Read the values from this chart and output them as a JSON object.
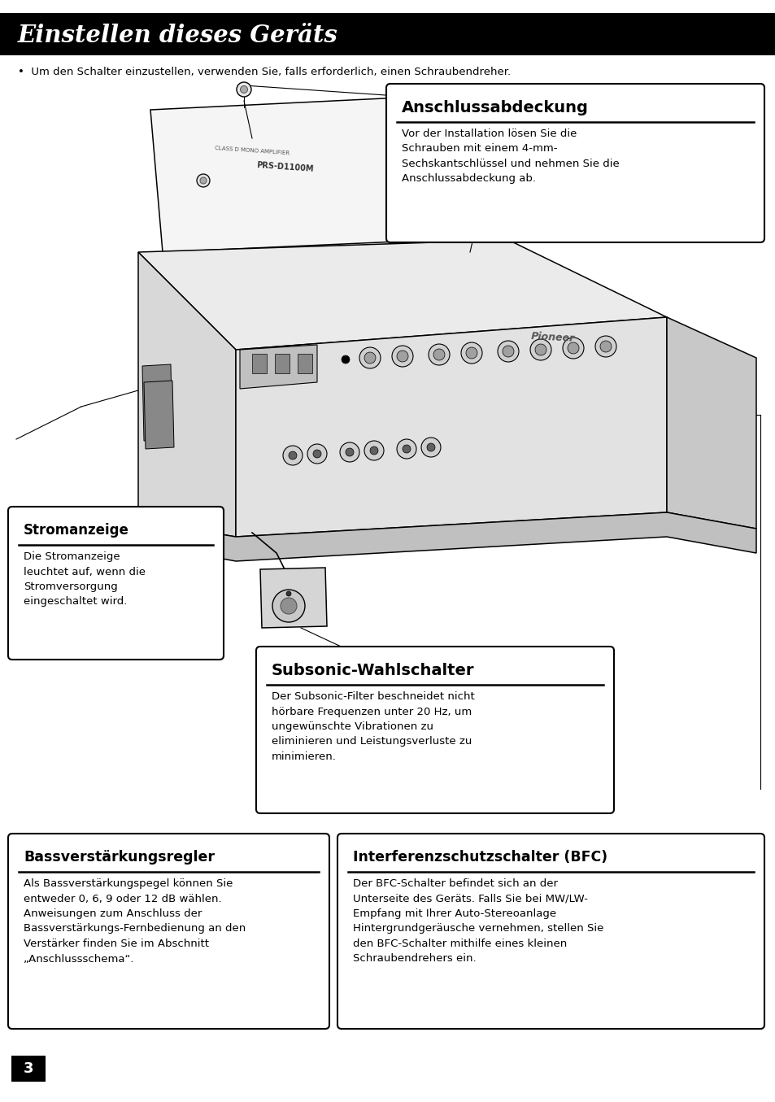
{
  "page_bg": "#ffffff",
  "title_bg": "#000000",
  "title_text": "Einstellen dieses Geräts",
  "title_color": "#ffffff",
  "bullet_text": "Um den Schalter einzustellen, verwenden Sie, falls erforderlich, einen Schraubendreher.",
  "box_anschluss_title": "Anschlussabdeckung",
  "box_anschluss_body": "Vor der Installation lösen Sie die\nSchrauben mit einem 4-mm-\nSechskantschlüssel und nehmen Sie die\nAnschlussabdeckung ab.",
  "box_strom_title": "Stromanzeige",
  "box_strom_body": "Die Stromanzeige\nleuchtet auf, wenn die\nStromversorgung\neingeschaltet wird.",
  "box_subsonic_title": "Subsonic-Wahlschalter",
  "box_subsonic_body": "Der Subsonic-Filter beschneidet nicht\nhörbare Frequenzen unter 20 Hz, um\nungewünschte Vibrationen zu\neliminieren und Leistungsverluste zu\nminimieren.",
  "box_bass_title": "Bassverstärkungsregler",
  "box_bass_body": "Als Bassverstärkungspegel können Sie\nentweder 0, 6, 9 oder 12 dB wählen.\nAnweisungen zum Anschluss der\nBassverstärkungs-Fernbedienung an den\nVerstärker finden Sie im Abschnitt\n„Anschlussschema“.",
  "box_bfc_title": "Interferenzschutzschalter (BFC)",
  "box_bfc_body": "Der BFC-Schalter befindet sich an der\nUnterseite des Geräts. Falls Sie bei MW/LW-\nEmpfang mit Ihrer Auto-Stereoanlage\nHintergrundgeräusche vernehmen, stellen Sie\nden BFC-Schalter mithilfe eines kleinen\nSchraubendrehers ein.",
  "page_num": "3"
}
